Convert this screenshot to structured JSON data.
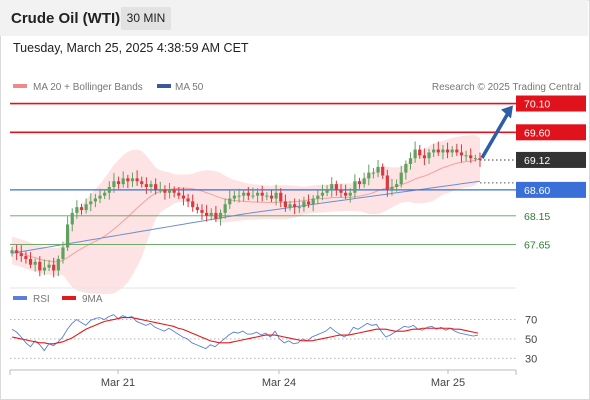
{
  "header": {
    "title": "Crude Oil (WTI)",
    "interval": "30 MIN",
    "timestamp": "Tuesday, March 25, 2025 4:38:59 AM CET"
  },
  "colors": {
    "resistance": "#e0121b",
    "support": "#3b6fd8",
    "support_green": "#5aa05a",
    "current": "#333333",
    "candle_up": "#5fa25f",
    "candle_down": "#d9383e",
    "bollinger_band": "#fde3e3",
    "ma20": "#f4a0a0",
    "ma50": "#6b8fcc",
    "rsi": "#5b7fd6",
    "rsi_ma": "#e21a1a",
    "arrow": "#2d5da6"
  },
  "chart_data": [
    {
      "type": "candlestick",
      "title": "Crude Oil (WTI)",
      "interval": "30 MIN",
      "legend": [
        {
          "name": "MA 20 + Bollinger Bands",
          "color": "#f08a8a"
        },
        {
          "name": "MA 50",
          "color": "#3b5a9e"
        }
      ],
      "legend_position": "top-left",
      "credit": "Research © 2025 Trading Central",
      "x_ticks": [
        "Mar 21",
        "Mar 24",
        "Mar 25"
      ],
      "y_range": [
        67.0,
        70.3
      ],
      "current_price": "69.12",
      "resistance_levels": [
        "70.10",
        "69.60"
      ],
      "support_levels": [
        "68.60",
        "68.15",
        "67.65"
      ],
      "close_series": [
        67.55,
        67.5,
        67.45,
        67.4,
        67.3,
        67.35,
        67.2,
        67.25,
        67.3,
        67.2,
        67.4,
        67.6,
        68.0,
        68.2,
        68.3,
        68.25,
        68.35,
        68.4,
        68.45,
        68.5,
        68.55,
        68.65,
        68.75,
        68.7,
        68.8,
        68.75,
        68.8,
        68.75,
        68.7,
        68.65,
        68.7,
        68.6,
        68.6,
        68.55,
        68.6,
        68.55,
        68.5,
        68.45,
        68.4,
        68.3,
        68.25,
        68.2,
        68.15,
        68.2,
        68.1,
        68.2,
        68.35,
        68.45,
        68.5,
        68.5,
        68.55,
        68.5,
        68.5,
        68.55,
        68.5,
        68.5,
        68.45,
        68.55,
        68.4,
        68.3,
        68.35,
        68.3,
        68.3,
        68.4,
        68.35,
        68.45,
        68.5,
        68.55,
        68.6,
        68.7,
        68.6,
        68.55,
        68.5,
        68.55,
        68.75,
        68.7,
        68.8,
        68.9,
        68.9,
        69.0,
        68.85,
        68.6,
        68.65,
        68.7,
        68.9,
        69.05,
        69.15,
        69.3,
        69.2,
        69.15,
        69.25,
        69.3,
        69.25,
        69.3,
        69.25,
        69.3,
        69.25,
        69.2,
        69.2,
        69.15,
        69.15,
        69.12
      ],
      "ma50_range": [
        67.5,
        68.75
      ],
      "projection": {
        "from": "69.12",
        "to": "70.10",
        "direction": "up"
      }
    },
    {
      "type": "line",
      "title": "RSI",
      "legend": [
        {
          "name": "RSI",
          "color": "#5b7fd6"
        },
        {
          "name": "9MA",
          "color": "#e21a1a"
        }
      ],
      "y_ticks": [
        "70",
        "50",
        "30"
      ],
      "y_range": [
        20,
        85
      ],
      "rsi": [
        60,
        57,
        52,
        46,
        42,
        48,
        44,
        38,
        45,
        43,
        47,
        52,
        60,
        66,
        70,
        67,
        64,
        69,
        71,
        72,
        70,
        73,
        75,
        71,
        74,
        72,
        73,
        68,
        66,
        64,
        66,
        62,
        60,
        58,
        61,
        58,
        55,
        52,
        50,
        46,
        44,
        42,
        40,
        44,
        42,
        46,
        50,
        54,
        57,
        56,
        58,
        55,
        55,
        57,
        54,
        56,
        52,
        58,
        50,
        46,
        48,
        45,
        46,
        50,
        48,
        52,
        54,
        56,
        58,
        62,
        58,
        55,
        52,
        55,
        62,
        60,
        63,
        66,
        64,
        65,
        58,
        52,
        54,
        57,
        60,
        63,
        62,
        64,
        60,
        59,
        62,
        63,
        60,
        62,
        59,
        61,
        58,
        56,
        55,
        54,
        53,
        54
      ],
      "ma9": [
        52,
        51,
        50,
        49,
        48,
        47,
        46,
        46,
        45,
        45,
        46,
        47,
        49,
        51,
        54,
        57,
        60,
        62,
        64,
        66,
        68,
        69,
        70,
        71,
        72,
        72,
        72,
        71,
        70,
        69,
        68,
        67,
        66,
        65,
        64,
        63,
        61,
        60,
        58,
        56,
        54,
        52,
        50,
        48,
        47,
        46,
        46,
        46,
        47,
        48,
        49,
        50,
        51,
        52,
        53,
        54,
        54,
        54,
        53,
        52,
        51,
        50,
        49,
        48,
        48,
        48,
        49,
        50,
        51,
        52,
        53,
        54,
        54,
        54,
        55,
        56,
        57,
        58,
        59,
        60,
        60,
        60,
        59,
        58,
        58,
        58,
        59,
        60,
        60,
        61,
        61,
        61,
        61,
        61,
        61,
        61,
        60,
        60,
        59,
        58,
        57,
        56
      ]
    }
  ]
}
